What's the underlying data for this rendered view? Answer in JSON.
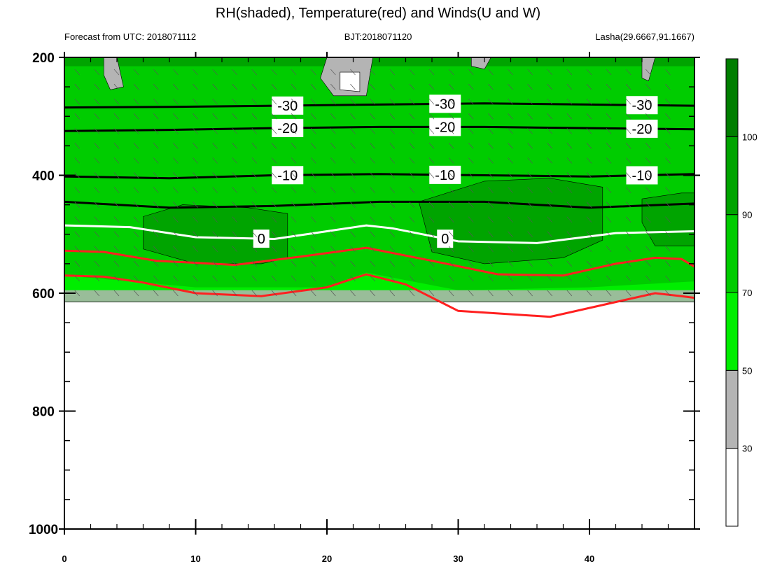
{
  "chart_data": {
    "type": "contour-cross-section",
    "title": "RH(shaded), Temperature(red) and Winds(U and W)",
    "subtitle_left": "Forecast from UTC: 2018071112",
    "subtitle_center": "BJT:2018071120",
    "subtitle_right": "Lasha(29.6667,91.1667)",
    "x_axis": {
      "range": [
        0,
        48
      ],
      "ticks": [
        0,
        10,
        20,
        30,
        40
      ],
      "labels": [
        "0",
        "10",
        "20",
        "30",
        "40"
      ]
    },
    "y_axis": {
      "range": [
        200,
        1000
      ],
      "reversed": true,
      "ticks": [
        200,
        400,
        600,
        800,
        1000
      ],
      "labels": [
        "200",
        "400",
        "600",
        "800",
        "1000"
      ]
    },
    "colorbar": {
      "levels": [
        30,
        50,
        70,
        90,
        100
      ],
      "labels": [
        "30",
        "50",
        "70",
        "90",
        "100"
      ],
      "colors": [
        "#ffffff",
        "#b4b4b4",
        "#00ee00",
        "#00cc00",
        "#00a400",
        "#007e00"
      ]
    },
    "ground_level_hpa": 615,
    "rh_fields": {
      "above_90_regions": [
        {
          "x": [
            6,
            9,
            14,
            17,
            17,
            15,
            10,
            6
          ],
          "y": [
            470,
            450,
            455,
            465,
            540,
            550,
            550,
            525
          ]
        },
        {
          "x": [
            27,
            32,
            37,
            41,
            41,
            38,
            32,
            28
          ],
          "y": [
            445,
            410,
            405,
            420,
            510,
            540,
            550,
            530
          ]
        },
        {
          "x": [
            44,
            47,
            48,
            48,
            45,
            44
          ],
          "y": [
            440,
            430,
            430,
            520,
            520,
            480
          ]
        }
      ],
      "below_50_regions": [
        {
          "x": [
            3,
            4,
            4.5,
            3.5,
            3
          ],
          "y": [
            200,
            200,
            250,
            255,
            230
          ]
        },
        {
          "x": [
            20,
            23.5,
            23,
            20.5,
            19.5
          ],
          "y": [
            200,
            200,
            265,
            265,
            235
          ]
        },
        {
          "x": [
            31,
            32.5,
            32,
            31
          ],
          "y": [
            200,
            200,
            220,
            215
          ]
        },
        {
          "x": [
            44,
            45,
            44.5,
            44
          ],
          "y": [
            200,
            200,
            240,
            235
          ]
        }
      ],
      "below_30_regions": [
        {
          "x": [
            21,
            22.5,
            22.5,
            21
          ],
          "y": [
            225,
            225,
            258,
            255
          ]
        }
      ]
    },
    "temperature_contours": [
      {
        "label": "-30",
        "x": [
          0,
          8,
          16,
          24,
          32,
          40,
          48
        ],
        "y": [
          285,
          284,
          282,
          280,
          278,
          280,
          282
        ],
        "color": "#000000"
      },
      {
        "label": "-20",
        "x": [
          0,
          8,
          16,
          24,
          32,
          40,
          48
        ],
        "y": [
          325,
          323,
          320,
          318,
          318,
          320,
          322
        ],
        "color": "#000000"
      },
      {
        "label": "-10",
        "x": [
          0,
          8,
          16,
          24,
          32,
          40,
          48
        ],
        "y": [
          402,
          405,
          400,
          398,
          400,
          402,
          398
        ],
        "color": "#000000"
      },
      {
        "label": "",
        "x": [
          0,
          8,
          16,
          24,
          32,
          40,
          48
        ],
        "y": [
          445,
          455,
          452,
          445,
          445,
          455,
          448
        ],
        "color": "#000000"
      },
      {
        "label": "0",
        "x": [
          0,
          5,
          10,
          16,
          20,
          23,
          25,
          30,
          36,
          42,
          48
        ],
        "y": [
          485,
          488,
          505,
          508,
          495,
          485,
          490,
          512,
          515,
          498,
          495
        ],
        "color": "#ffffff"
      },
      {
        "label": "",
        "x": [
          0,
          3,
          7,
          13,
          18,
          23,
          28,
          33,
          38,
          42,
          45,
          47,
          48
        ],
        "y": [
          528,
          530,
          545,
          552,
          538,
          523,
          545,
          568,
          570,
          550,
          540,
          542,
          555
        ],
        "color": "#ff2020"
      },
      {
        "label": "",
        "x": [
          0,
          3,
          6,
          10,
          15,
          20,
          23,
          26,
          30,
          37,
          42,
          45,
          47,
          48
        ],
        "y": [
          570,
          572,
          582,
          600,
          605,
          590,
          568,
          585,
          630,
          640,
          615,
          600,
          605,
          608
        ],
        "color": "#ff2020"
      }
    ]
  }
}
